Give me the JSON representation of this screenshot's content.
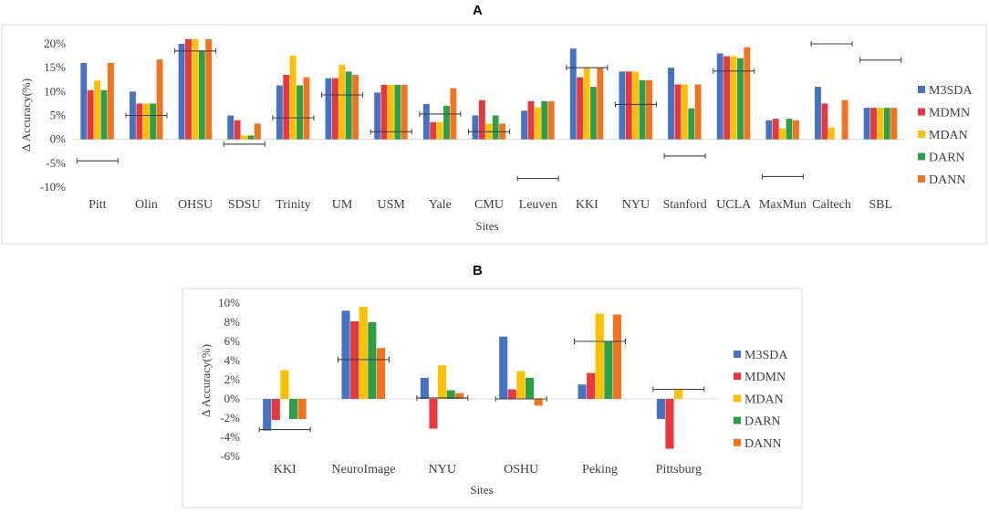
{
  "panel_a_label": "A",
  "panel_b_label": "B",
  "chart_data": [
    {
      "type": "bar",
      "xlabel": "Sites",
      "ylabel": "Δ Accuracy(%)",
      "ylim": [
        -10,
        20
      ],
      "yticks": [
        -10,
        -5,
        0,
        5,
        10,
        15,
        20
      ],
      "legend": "right",
      "categories": [
        "Pitt",
        "Olin",
        "OHSU",
        "SDSU",
        "Trinity",
        "UM",
        "USM",
        "Yale",
        "CMU",
        "Leuven",
        "KKI",
        "NYU",
        "Stanford",
        "UCLA",
        "MaxMun",
        "Caltech",
        "SBL"
      ],
      "series": [
        {
          "name": "M3SDA",
          "color": "#4472C4",
          "values": [
            16.0,
            10.0,
            20.0,
            5.0,
            11.3,
            12.8,
            9.8,
            7.4,
            5.0,
            6.0,
            19.0,
            14.2,
            15.0,
            18.0,
            4.0,
            11.0,
            6.6
          ]
        },
        {
          "name": "MDMN",
          "color": "#E8383D",
          "values": [
            10.3,
            7.5,
            21.0,
            4.0,
            13.5,
            12.8,
            11.4,
            3.6,
            8.2,
            8.0,
            13.0,
            14.2,
            11.5,
            17.4,
            4.3,
            7.5,
            6.6
          ]
        },
        {
          "name": "MDAN",
          "color": "#FFC000",
          "values": [
            12.3,
            7.5,
            21.0,
            0.8,
            17.5,
            15.6,
            11.4,
            3.6,
            3.3,
            6.7,
            15.0,
            14.2,
            11.5,
            17.4,
            2.3,
            2.5,
            6.6
          ]
        },
        {
          "name": "DARN",
          "color": "#2CA048",
          "values": [
            10.3,
            7.5,
            18.5,
            0.8,
            11.3,
            14.2,
            11.4,
            7.0,
            5.0,
            8.0,
            11.0,
            12.4,
            6.5,
            17.0,
            4.3,
            0,
            6.6
          ]
        },
        {
          "name": "DANN",
          "color": "#F4731F",
          "values": [
            16.0,
            16.7,
            21.0,
            3.3,
            13.0,
            13.5,
            11.4,
            10.7,
            3.3,
            8.0,
            15.0,
            12.4,
            11.5,
            19.3,
            4.0,
            8.2,
            6.6
          ]
        }
      ],
      "mean_lines": [
        -4.5,
        5.0,
        18.5,
        -1.0,
        4.5,
        9.3,
        1.6,
        5.3,
        1.6,
        -8.2,
        15.0,
        7.3,
        -3.5,
        14.3,
        -7.8,
        20.0,
        16.6
      ]
    },
    {
      "type": "bar",
      "xlabel": "Sites",
      "ylabel": "Δ Accuracy(%)",
      "ylim": [
        -6,
        10
      ],
      "yticks": [
        -6,
        -4,
        -2,
        0,
        2,
        4,
        6,
        8,
        10
      ],
      "legend": "right",
      "categories": [
        "KKI",
        "NeuroImage",
        "NYU",
        "OSHU",
        "Peking",
        "Pittsburg"
      ],
      "series": [
        {
          "name": "M3SDA",
          "color": "#4472C4",
          "values": [
            -3.3,
            9.2,
            2.2,
            6.5,
            1.5,
            -2.1
          ]
        },
        {
          "name": "MDMN",
          "color": "#E8383D",
          "values": [
            -2.2,
            8.1,
            -3.1,
            1.0,
            2.7,
            -5.2
          ]
        },
        {
          "name": "MDAN",
          "color": "#FFC000",
          "values": [
            3.0,
            9.6,
            3.5,
            2.9,
            8.9,
            1.0
          ]
        },
        {
          "name": "DARN",
          "color": "#2CA048",
          "values": [
            -2.1,
            8.0,
            0.9,
            2.2,
            6.0,
            0
          ]
        },
        {
          "name": "DANN",
          "color": "#F4731F",
          "values": [
            -2.1,
            5.3,
            0.6,
            -0.7,
            8.8,
            0
          ]
        }
      ],
      "mean_lines": [
        -3.2,
        4.1,
        0.1,
        0.0,
        6.0,
        1.0
      ]
    }
  ]
}
